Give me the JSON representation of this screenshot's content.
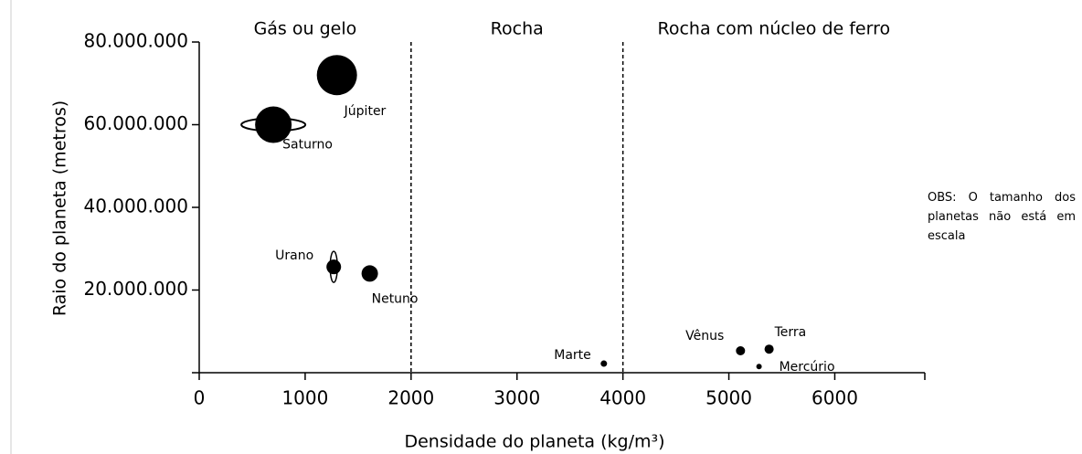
{
  "chart_data": {
    "type": "scatter",
    "x_label": "Densidade do planeta (kg/m³)",
    "y_label": "Raio do planeta (metros)",
    "labels": [
      "Júpiter",
      "Saturno",
      "Urano",
      "Netuno",
      "Marte",
      "Vênus",
      "Terra",
      "Mercúrio"
    ],
    "x": [
      1300,
      700,
      1270,
      1610,
      3820,
      5110,
      5380,
      5285
    ],
    "values": [
      72000000,
      60000000,
      25600000,
      24000000,
      2200000,
      5300000,
      5700000,
      1500000
    ],
    "color": "#000000",
    "xlim": [
      0,
      6850
    ],
    "xticks": [
      0,
      1000,
      2000,
      3000,
      4000,
      5000,
      6000
    ],
    "ylim": [
      0,
      80000000
    ],
    "yticks": [
      {
        "value": 20000000,
        "label": "20.000.000"
      },
      {
        "value": 40000000,
        "label": "40.000.000"
      },
      {
        "value": 60000000,
        "label": "60.000.000"
      },
      {
        "value": 80000000,
        "label": "80.000.000"
      }
    ],
    "dividers": [
      2000,
      4000
    ],
    "regions": [
      "Gás ou gelo",
      "Rocha",
      "Rocha com núcleo de ferro"
    ],
    "note": "OBS: O tamanho dos planetas não está em escala"
  }
}
